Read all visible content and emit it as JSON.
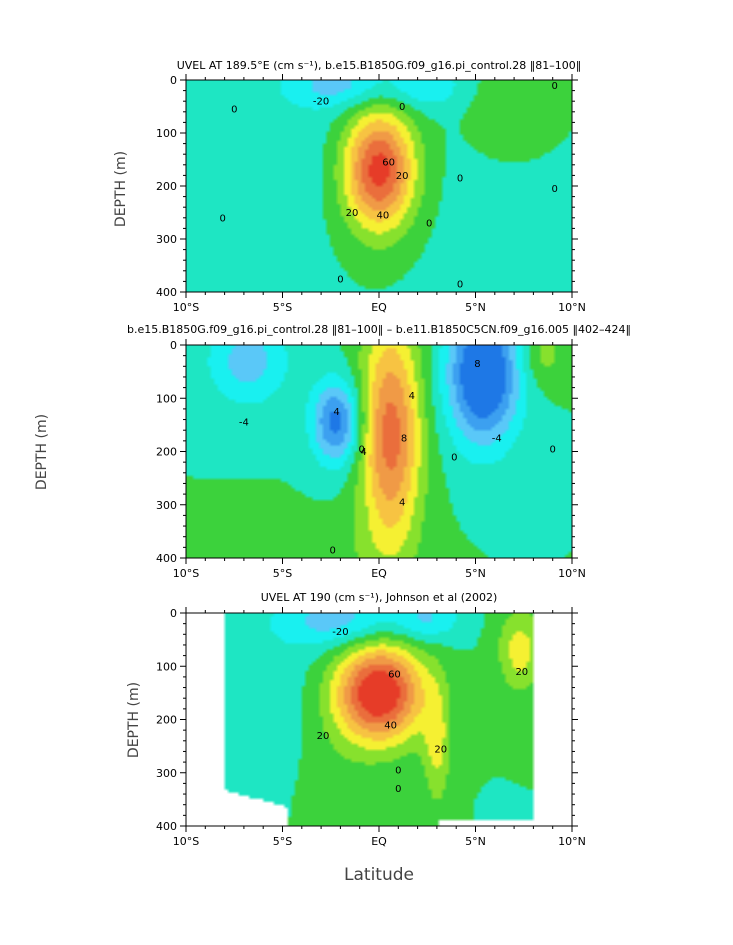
{
  "colors": {
    "level_minus": [
      "#1e78e6",
      "#3ca0f0",
      "#5ac8f8",
      "#19f0f0"
    ],
    "level_zero": "#1ee6c3",
    "level_plus": [
      "#3cd23c",
      "#87e12d",
      "#f5f032",
      "#f7c342",
      "#f09a46",
      "#ea6e3c",
      "#e63c28"
    ],
    "contour_line": "#000000",
    "missing": "#ffffff"
  },
  "xlabel": "Latitude",
  "chart_data": [
    {
      "type": "contour",
      "title": "UVEL AT 189.5°E (cm s⁻¹), b.e15.B1850G.f09_g16.pi_control.28 ‖81–100‖",
      "xlabel": "",
      "ylabel": "DEPTH (m)",
      "xlim": [
        -10,
        10
      ],
      "ylim": [
        400,
        0
      ],
      "xticks": [
        "10°S",
        "5°S",
        "EQ",
        "5°N",
        "10°N"
      ],
      "yticks": [
        "0",
        "100",
        "200",
        "300",
        "400"
      ],
      "contour_interval": 10,
      "contour_labels": [
        {
          "text": "0",
          "lat": -7.5,
          "depth": 55
        },
        {
          "text": "-20",
          "lat": -3.0,
          "depth": 40
        },
        {
          "text": "0",
          "lat": 1.2,
          "depth": 50
        },
        {
          "text": "60",
          "lat": 0.5,
          "depth": 155
        },
        {
          "text": "20",
          "lat": 1.2,
          "depth": 180
        },
        {
          "text": "20",
          "lat": -1.4,
          "depth": 250
        },
        {
          "text": "40",
          "lat": 0.2,
          "depth": 255
        },
        {
          "text": "0",
          "lat": 2.6,
          "depth": 270
        },
        {
          "text": "0",
          "lat": -8.1,
          "depth": 260
        },
        {
          "text": "0",
          "lat": 4.2,
          "depth": 185
        },
        {
          "text": "0",
          "lat": 9.1,
          "depth": 205
        },
        {
          "text": "0",
          "lat": 9.1,
          "depth": 10
        },
        {
          "text": "0",
          "lat": 4.2,
          "depth": 385
        },
        {
          "text": "0",
          "lat": -2.0,
          "depth": 375
        }
      ]
    },
    {
      "type": "contour",
      "title": "b.e15.B1850G.f09_g16.pi_control.28 ‖81–100‖ – b.e11.B1850C5CN.f09_g16.005 ‖402–424‖",
      "xlabel": "",
      "ylabel": "DEPTH (m)",
      "xlim": [
        -10,
        10
      ],
      "ylim": [
        400,
        0
      ],
      "xticks": [
        "10°S",
        "5°S",
        "EQ",
        "5°N",
        "10°N"
      ],
      "yticks": [
        "0",
        "100",
        "200",
        "300",
        "400"
      ],
      "contour_interval": 2,
      "contour_labels": [
        {
          "text": "-4",
          "lat": -7.0,
          "depth": 145
        },
        {
          "text": "4",
          "lat": -2.2,
          "depth": 125
        },
        {
          "text": "4",
          "lat": -0.8,
          "depth": 200
        },
        {
          "text": "4",
          "lat": 1.7,
          "depth": 95
        },
        {
          "text": "8",
          "lat": 1.3,
          "depth": 175
        },
        {
          "text": "8",
          "lat": 5.1,
          "depth": 35
        },
        {
          "text": "-4",
          "lat": 6.1,
          "depth": 175
        },
        {
          "text": "0",
          "lat": 3.9,
          "depth": 210
        },
        {
          "text": "0",
          "lat": 9.0,
          "depth": 195
        },
        {
          "text": "4",
          "lat": 1.2,
          "depth": 295
        },
        {
          "text": "0",
          "lat": -2.4,
          "depth": 385
        },
        {
          "text": "0",
          "lat": -0.9,
          "depth": 195
        }
      ]
    },
    {
      "type": "contour",
      "title": "UVEL AT 190 (cm s⁻¹), Johnson et al (2002)",
      "xlabel": "",
      "ylabel": "DEPTH (m)",
      "xlim": [
        -10,
        10
      ],
      "ylim": [
        400,
        0
      ],
      "xticks": [
        "10°S",
        "5°S",
        "EQ",
        "5°N",
        "10°N"
      ],
      "yticks": [
        "0",
        "100",
        "200",
        "300",
        "400"
      ],
      "contour_interval": 10,
      "data_range_lat": [
        -8,
        8
      ],
      "contour_labels": [
        {
          "text": "-20",
          "lat": -2.0,
          "depth": 35
        },
        {
          "text": "60",
          "lat": 0.8,
          "depth": 115
        },
        {
          "text": "40",
          "lat": 0.6,
          "depth": 210
        },
        {
          "text": "20",
          "lat": -2.9,
          "depth": 230
        },
        {
          "text": "20",
          "lat": 3.2,
          "depth": 255
        },
        {
          "text": "20",
          "lat": 7.4,
          "depth": 110
        },
        {
          "text": "0",
          "lat": 1.0,
          "depth": 295
        },
        {
          "text": "0",
          "lat": 1.0,
          "depth": 330
        }
      ]
    }
  ]
}
